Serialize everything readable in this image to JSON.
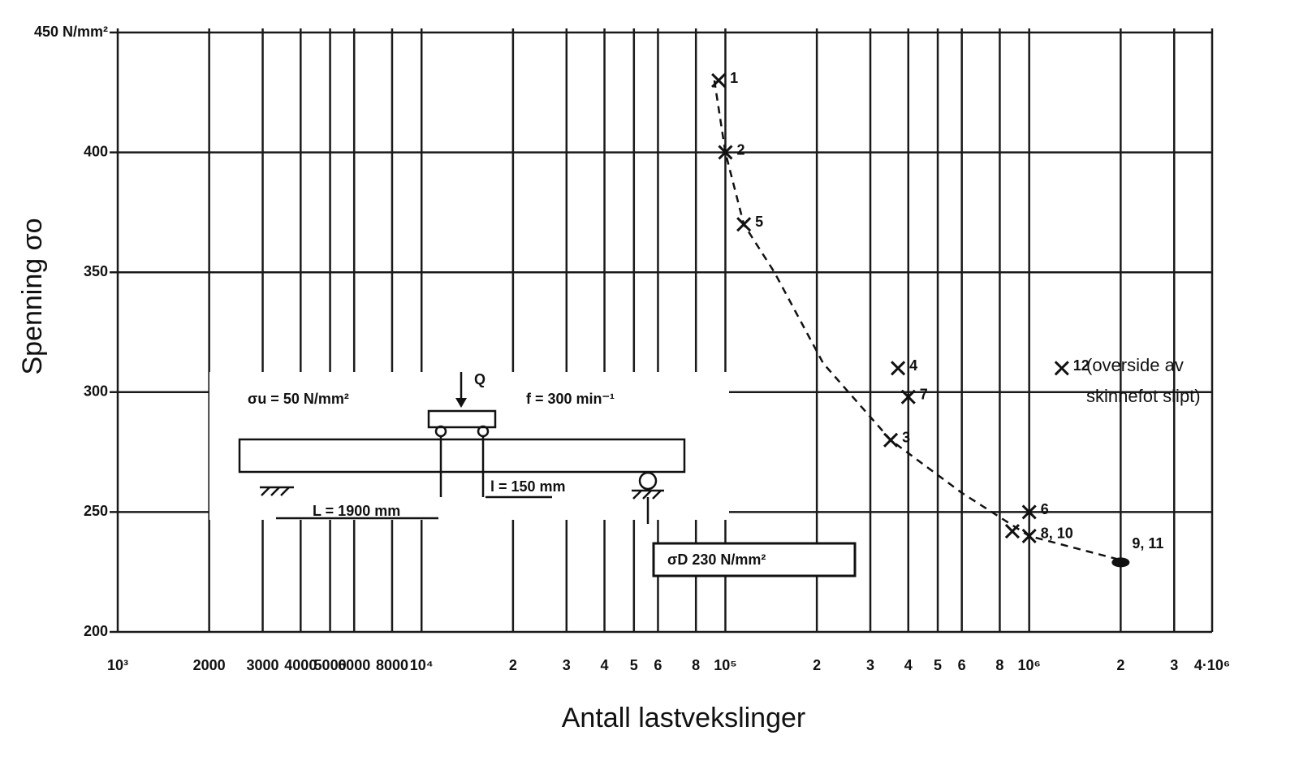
{
  "chart_data": {
    "type": "scatter",
    "xlabel": "Antall lastvekslinger",
    "ylabel": "Spenning σo",
    "log_x": true,
    "grid": true,
    "color": "#111111",
    "xlim": [
      1000,
      4000000
    ],
    "ylim": [
      200,
      450
    ],
    "xticks": [
      {
        "value": 1000,
        "label": "10³"
      },
      2000,
      3000,
      4000,
      5000,
      6000,
      8000,
      {
        "value": 10000,
        "label": "10⁴"
      },
      {
        "value": 20000,
        "label": "2"
      },
      {
        "value": 30000,
        "label": "3"
      },
      {
        "value": 40000,
        "label": "4"
      },
      {
        "value": 50000,
        "label": "5"
      },
      {
        "value": 60000,
        "label": "6"
      },
      {
        "value": 80000,
        "label": "8"
      },
      {
        "value": 100000,
        "label": "10⁵"
      },
      {
        "value": 200000,
        "label": "2"
      },
      {
        "value": 300000,
        "label": "3"
      },
      {
        "value": 400000,
        "label": "4"
      },
      {
        "value": 500000,
        "label": "5"
      },
      {
        "value": 600000,
        "label": "6"
      },
      {
        "value": 800000,
        "label": "8"
      },
      {
        "value": 1000000,
        "label": "10⁶"
      },
      {
        "value": 2000000,
        "label": "2"
      },
      {
        "value": 3000000,
        "label": "3"
      },
      {
        "value": 4000000,
        "label": "4·10⁶"
      }
    ],
    "yticks": [
      200,
      250,
      300,
      350,
      400,
      {
        "value": 450,
        "label": "450 N/mm²"
      }
    ],
    "x": [
      95000,
      100000,
      115000,
      370000,
      400000,
      350000,
      1000000,
      880000,
      1000000,
      2000000,
      1280000
    ],
    "y": [
      430,
      400,
      370,
      310,
      298,
      280,
      250,
      242,
      240,
      229,
      310
    ],
    "point_labels": [
      "1",
      "2",
      "5",
      "4",
      "7",
      "3",
      "6",
      null,
      "8, 10",
      "9, 11",
      "12"
    ],
    "markers": [
      "x",
      "x",
      "x",
      "x",
      "x",
      "x",
      "x",
      "x",
      "x",
      "dot",
      "x"
    ],
    "curve_x": [
      92000,
      100000,
      115000,
      145000,
      210000,
      350000,
      600000,
      1000000,
      2000000
    ],
    "curve_y": [
      430,
      400,
      370,
      350,
      312,
      280,
      258,
      240,
      230
    ],
    "annotations": [
      "(overside av",
      "skinnefot slipt)"
    ],
    "endurance_label": "σD   230 N/mm²",
    "inset": {
      "stress": "σu =  50 N/mm²",
      "load": "Q",
      "frequency": "f = 300 min⁻¹",
      "spacing": "l = 150 mm",
      "span": "L = 1900 mm"
    }
  }
}
